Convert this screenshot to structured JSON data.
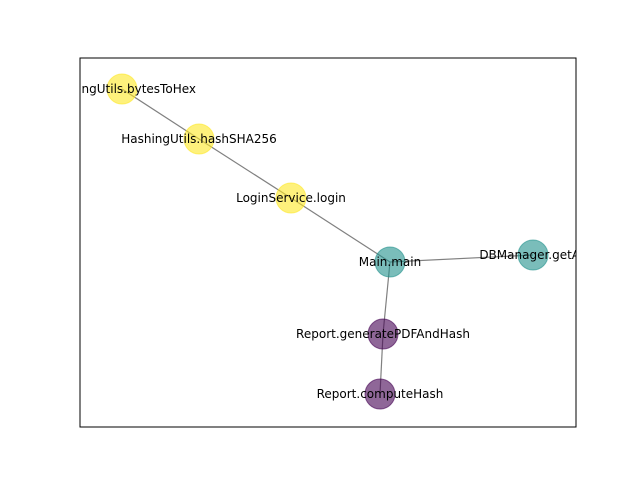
{
  "graph": {
    "edge_color": "#808080",
    "frame_color": "#000000",
    "node_opacity": 0.6,
    "colors": {
      "yellow": "#fde725",
      "teal": "#21918c",
      "purple": "#440154"
    },
    "nodes": [
      {
        "id": "bytesToHex",
        "label": "HashingUtils.bytesToHex",
        "color": "yellow"
      },
      {
        "id": "hashSHA256",
        "label": "HashingUtils.hashSHA256",
        "color": "yellow"
      },
      {
        "id": "login",
        "label": "LoginService.login",
        "color": "yellow"
      },
      {
        "id": "main",
        "label": "Main.main",
        "color": "teal"
      },
      {
        "id": "getAll",
        "label": "DBManager.getAll",
        "color": "teal"
      },
      {
        "id": "genPDF",
        "label": "Report.generatePDFAndHash",
        "color": "purple"
      },
      {
        "id": "computeHash",
        "label": "Report.computeHash",
        "color": "purple"
      }
    ],
    "edges": [
      [
        "bytesToHex",
        "hashSHA256"
      ],
      [
        "hashSHA256",
        "login"
      ],
      [
        "login",
        "main"
      ],
      [
        "main",
        "getAll"
      ],
      [
        "main",
        "genPDF"
      ],
      [
        "genPDF",
        "computeHash"
      ]
    ]
  }
}
